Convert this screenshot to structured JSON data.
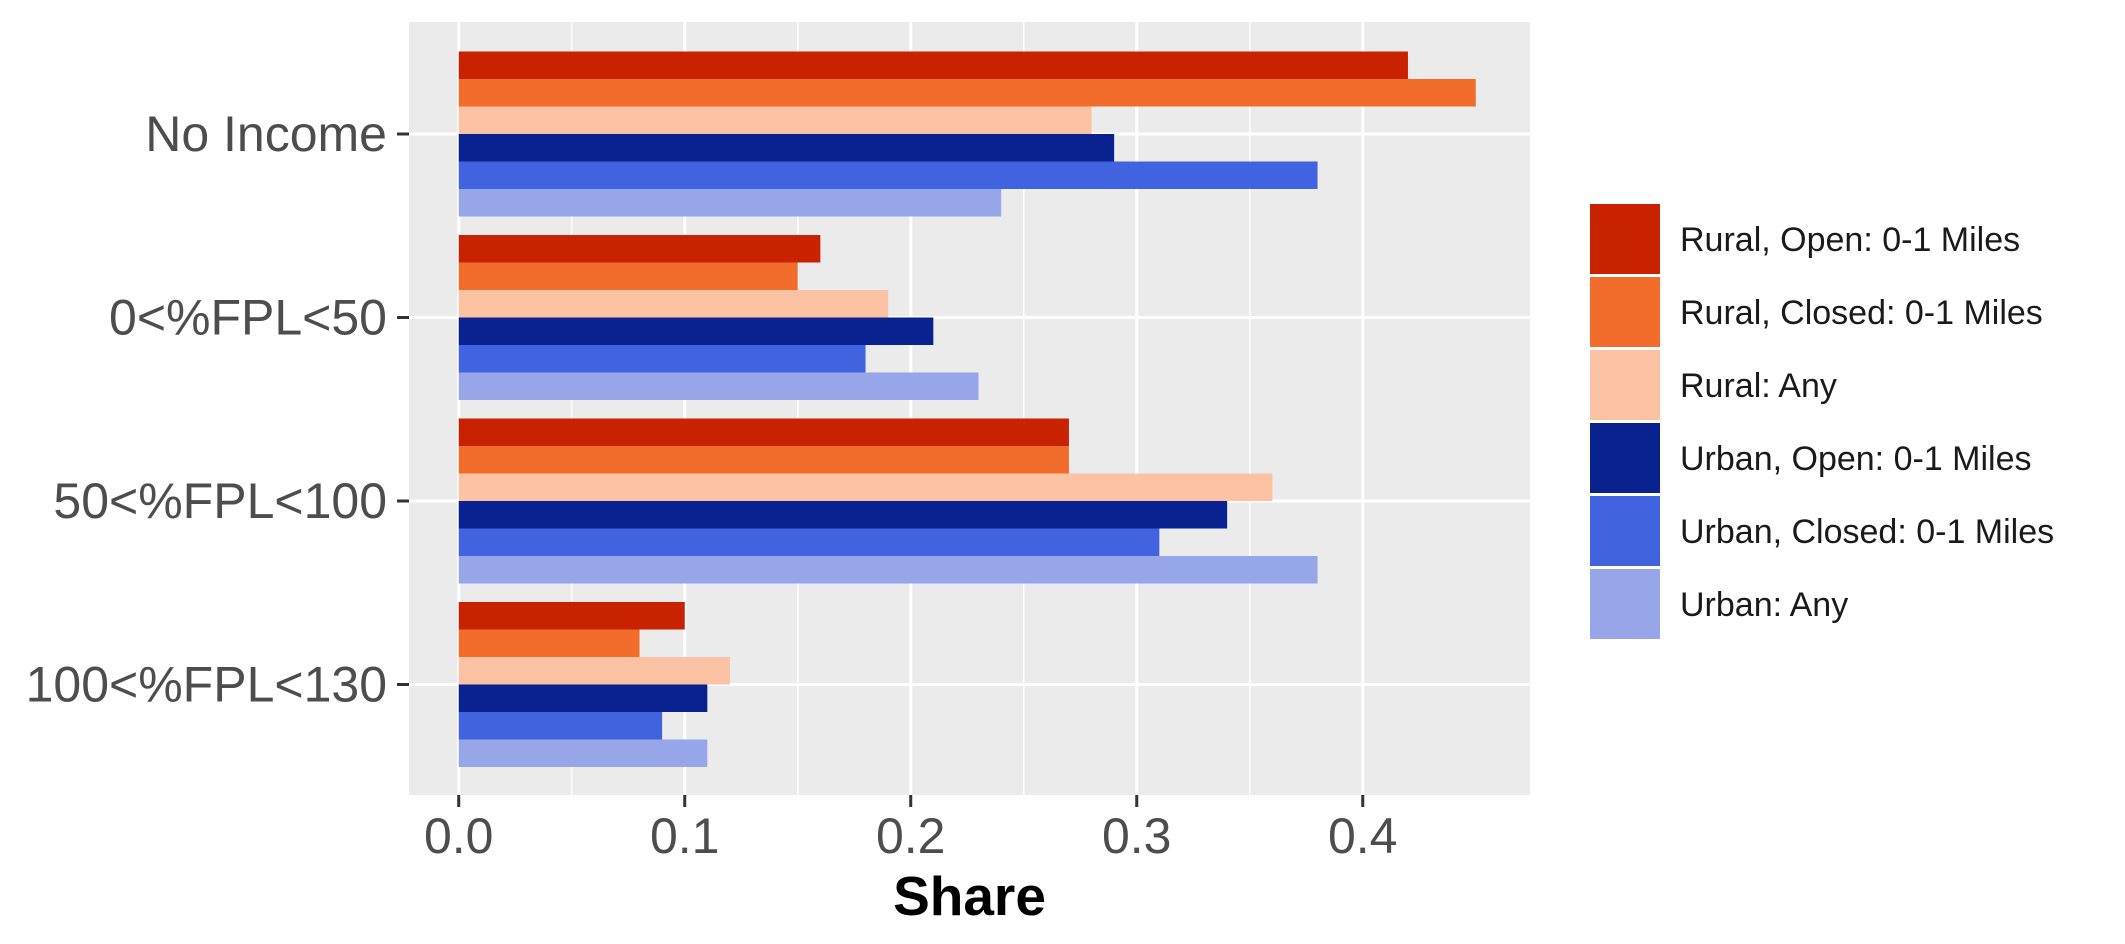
{
  "chart_data": {
    "type": "bar",
    "orientation": "horizontal",
    "categories": [
      "No Income",
      "0<%FPL<50",
      "50<%FPL<100",
      "100<%FPL<130"
    ],
    "series": [
      {
        "name": "Rural, Open: 0-1 Miles",
        "color": "#c82200",
        "values": [
          0.42,
          0.16,
          0.27,
          0.1
        ]
      },
      {
        "name": "Rural, Closed: 0-1 Miles",
        "color": "#f26d2c",
        "values": [
          0.45,
          0.15,
          0.27,
          0.08
        ]
      },
      {
        "name": "Rural: Any",
        "color": "#fcc2a4",
        "values": [
          0.28,
          0.19,
          0.36,
          0.12
        ]
      },
      {
        "name": "Urban, Open: 0-1 Miles",
        "color": "#0a228f",
        "values": [
          0.29,
          0.21,
          0.34,
          0.11
        ]
      },
      {
        "name": "Urban, Closed: 0-1 Miles",
        "color": "#4163e0",
        "values": [
          0.38,
          0.18,
          0.31,
          0.09
        ]
      },
      {
        "name": "Urban: Any",
        "color": "#96a6e8",
        "values": [
          0.24,
          0.23,
          0.38,
          0.11
        ]
      }
    ],
    "xlabel": "Share",
    "ylabel": "",
    "xlim": [
      -0.022,
      0.474
    ],
    "x_ticks": [
      0.0,
      0.1,
      0.2,
      0.3,
      0.4
    ],
    "x_tick_labels": [
      "0.0",
      "0.1",
      "0.2",
      "0.3",
      "0.4"
    ],
    "grid": true,
    "legend_position": "right",
    "panel_background": "#ebebeb",
    "grid_color": "#ffffff"
  }
}
